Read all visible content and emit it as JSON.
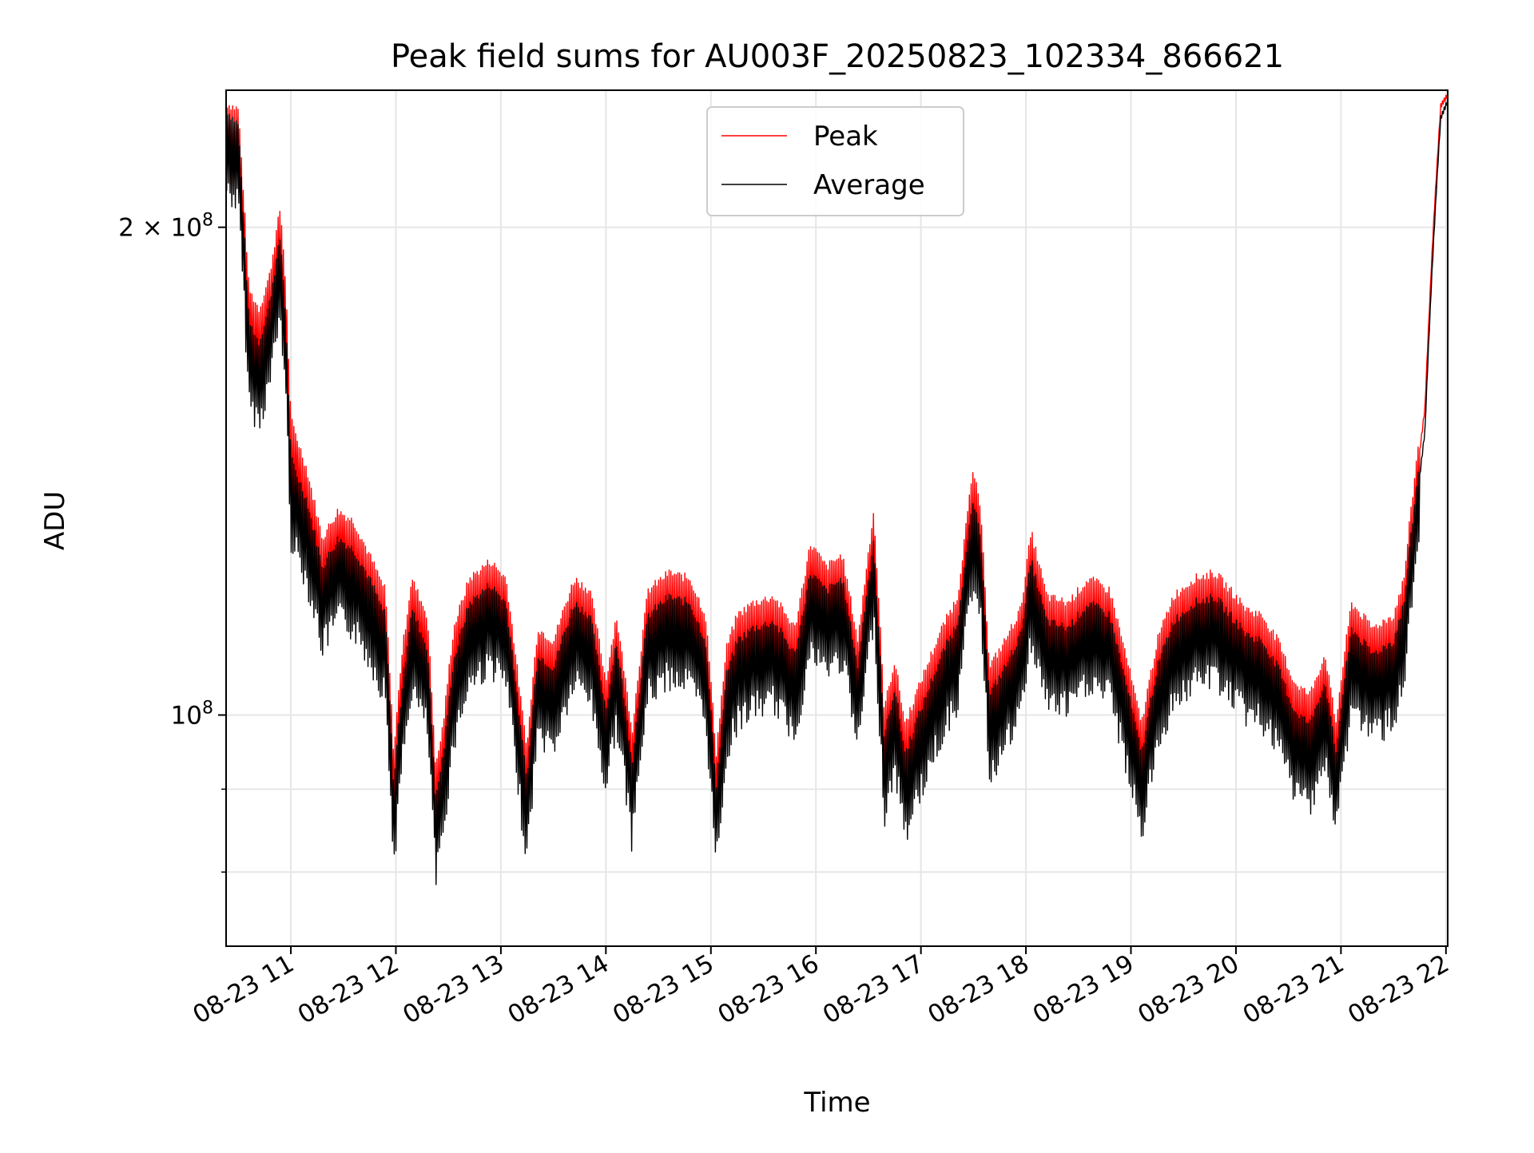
{
  "chart_data": {
    "type": "line",
    "title": "Peak field sums for AU003F_20250823_102334_866621",
    "xlabel": "Time",
    "ylabel": "ADU",
    "yscale": "log",
    "ylim": [
      72000000,
      243000000
    ],
    "xlim": [
      "08-23 10:23",
      "08-23 22:01"
    ],
    "grid": true,
    "legend_position": "top-center",
    "x_ticks": [
      "08-23 11",
      "08-23 12",
      "08-23 13",
      "08-23 14",
      "08-23 15",
      "08-23 16",
      "08-23 17",
      "08-23 18",
      "08-23 19",
      "08-23 20",
      "08-23 21",
      "08-23 22"
    ],
    "y_ticks": [
      {
        "value": 100000000,
        "label": "10^8",
        "base": "10",
        "exp": "8"
      },
      {
        "value": 200000000,
        "label": "2×10^8",
        "mant": "2 × ",
        "base": "10",
        "exp": "8"
      }
    ],
    "y_minor_ticks": [
      90000000,
      80000000
    ],
    "x_time_hours": [
      10.38,
      10.5,
      10.6,
      10.7,
      10.8,
      10.9,
      10.95,
      11.0,
      11.15,
      11.3,
      11.45,
      11.6,
      11.75,
      11.9,
      11.98,
      12.05,
      12.15,
      12.3,
      12.38,
      12.45,
      12.55,
      12.7,
      12.9,
      13.05,
      13.2,
      13.25,
      13.35,
      13.5,
      13.7,
      13.85,
      14.0,
      14.1,
      14.25,
      14.4,
      14.6,
      14.8,
      14.95,
      15.05,
      15.15,
      15.25,
      15.4,
      15.6,
      15.8,
      15.95,
      16.1,
      16.25,
      16.4,
      16.55,
      16.65,
      16.75,
      16.85,
      16.95,
      17.05,
      17.2,
      17.35,
      17.5,
      17.58,
      17.65,
      17.8,
      17.95,
      18.05,
      18.2,
      18.4,
      18.6,
      18.8,
      18.95,
      19.1,
      19.25,
      19.4,
      19.6,
      19.8,
      19.95,
      20.1,
      20.25,
      20.4,
      20.55,
      20.7,
      20.85,
      20.95,
      21.1,
      21.3,
      21.5,
      21.6,
      21.7,
      21.8,
      21.88,
      21.95,
      22.02
    ],
    "series": [
      {
        "name": "Peak",
        "color": "#ff0000",
        "values": [
          232000000,
          230000000,
          178000000,
          173000000,
          182000000,
          200000000,
          180000000,
          148000000,
          138000000,
          125000000,
          130000000,
          128000000,
          122000000,
          116000000,
          92000000,
          105000000,
          118000000,
          112000000,
          90000000,
          96000000,
          110000000,
          118000000,
          121000000,
          118000000,
          98000000,
          93000000,
          110000000,
          108000000,
          118000000,
          116000000,
          102000000,
          112000000,
          95000000,
          116000000,
          119000000,
          118000000,
          112000000,
          92000000,
          107000000,
          112000000,
          114000000,
          115000000,
          110000000,
          124000000,
          120000000,
          122000000,
          108000000,
          130000000,
          98000000,
          105000000,
          96000000,
          100000000,
          104000000,
          110000000,
          115000000,
          138000000,
          128000000,
          104000000,
          108000000,
          113000000,
          126000000,
          115000000,
          114000000,
          118000000,
          116000000,
          106000000,
          96000000,
          108000000,
          115000000,
          118000000,
          119000000,
          116000000,
          113000000,
          112000000,
          108000000,
          102000000,
          100000000,
          106000000,
          96000000,
          114000000,
          110000000,
          112000000,
          118000000,
          136000000,
          155000000,
          200000000,
          238000000,
          242000000
        ]
      },
      {
        "name": "Average",
        "color": "#000000",
        "values": [
          230000000,
          225000000,
          170000000,
          165000000,
          175000000,
          192000000,
          172000000,
          140000000,
          132000000,
          120000000,
          125000000,
          123000000,
          118000000,
          112000000,
          88000000,
          100000000,
          113000000,
          107000000,
          86000000,
          92000000,
          105000000,
          114000000,
          117000000,
          114000000,
          94000000,
          89000000,
          106000000,
          104000000,
          114000000,
          112000000,
          98000000,
          108000000,
          91000000,
          112000000,
          115000000,
          114000000,
          108000000,
          88000000,
          103000000,
          108000000,
          110000000,
          111000000,
          106000000,
          119000000,
          116000000,
          118000000,
          104000000,
          125000000,
          94000000,
          101000000,
          92000000,
          96000000,
          100000000,
          106000000,
          111000000,
          132000000,
          123000000,
          100000000,
          104000000,
          109000000,
          121000000,
          111000000,
          110000000,
          114000000,
          112000000,
          102000000,
          92000000,
          104000000,
          111000000,
          114000000,
          115000000,
          112000000,
          109000000,
          108000000,
          104000000,
          98000000,
          96000000,
          102000000,
          92000000,
          110000000,
          106000000,
          108000000,
          114000000,
          131000000,
          150000000,
          195000000,
          234000000,
          240000000
        ]
      }
    ]
  }
}
